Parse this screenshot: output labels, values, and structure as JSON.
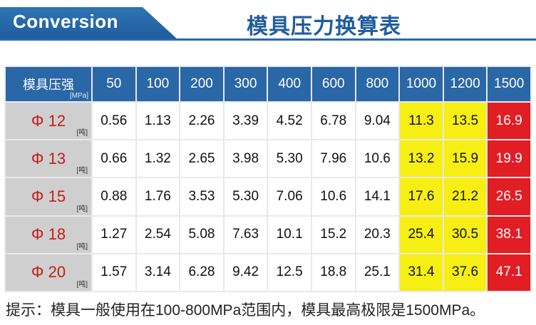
{
  "header": {
    "banner": "Conversion",
    "title": "模具压力换算表"
  },
  "table": {
    "corner_label": "模具压强",
    "corner_unit": "[MPa]",
    "row_unit": "[吨]",
    "pressures": [
      "50",
      "100",
      "200",
      "300",
      "400",
      "600",
      "800",
      "1000",
      "1200",
      "1500"
    ],
    "rows": [
      {
        "label": "Φ 12",
        "values": [
          "0.56",
          "1.13",
          "2.26",
          "3.39",
          "4.52",
          "6.78",
          "9.04",
          "11.3",
          "13.5",
          "16.9"
        ]
      },
      {
        "label": "Φ 13",
        "values": [
          "0.66",
          "1.32",
          "2.65",
          "3.98",
          "5.30",
          "7.96",
          "10.6",
          "13.2",
          "15.9",
          "19.9"
        ]
      },
      {
        "label": "Φ 15",
        "values": [
          "0.88",
          "1.76",
          "3.53",
          "5.30",
          "7.06",
          "10.6",
          "14.1",
          "17.6",
          "21.2",
          "26.5"
        ]
      },
      {
        "label": "Φ 18",
        "values": [
          "1.27",
          "2.54",
          "5.08",
          "7.63",
          "10.1",
          "15.2",
          "20.3",
          "25.4",
          "30.5",
          "38.1"
        ]
      },
      {
        "label": "Φ 20",
        "values": [
          "1.57",
          "3.14",
          "6.28",
          "9.42",
          "12.5",
          "18.8",
          "25.1",
          "31.4",
          "37.6",
          "47.1"
        ]
      }
    ],
    "colors": {
      "header": "#2a67a6",
      "caution": "#f7ee13",
      "danger": "#e01e24",
      "row_label": "#cfcfcf"
    }
  },
  "note": "提示：模具一般使用在100-800MPa范围内，模具最高极限是1500MPa。"
}
